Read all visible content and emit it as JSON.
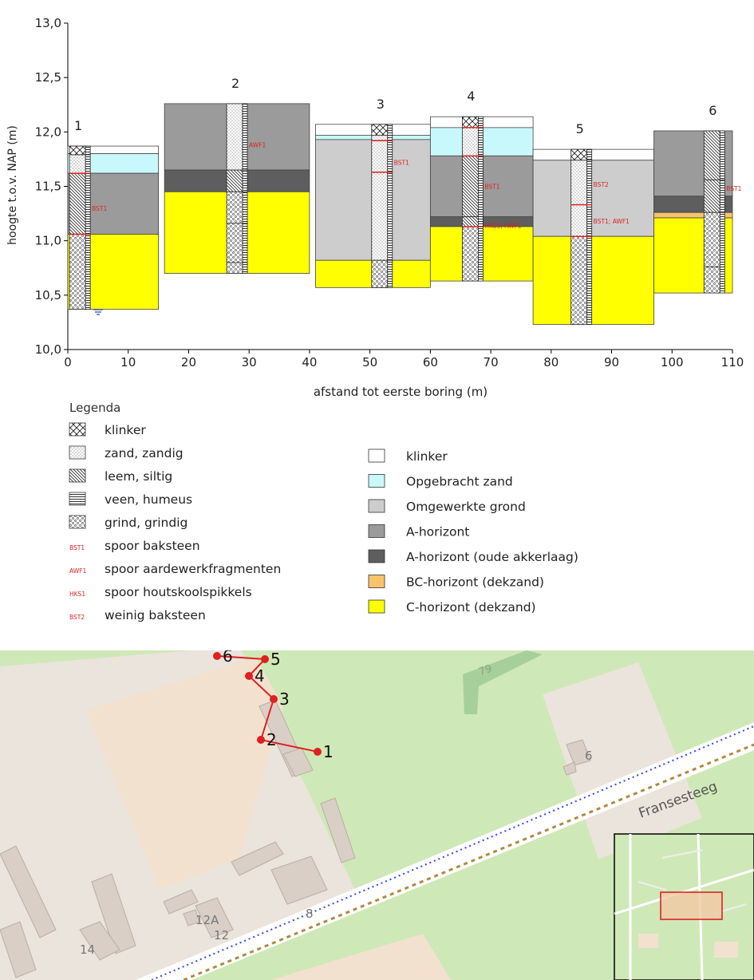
{
  "chart_data": {
    "type": "boring-profile",
    "ylabel": "hoogte t.o.v. NAP (m)",
    "xlabel": "afstand tot eerste boring (m)",
    "xlim": [
      0,
      110
    ],
    "ylim": [
      10.0,
      13.0
    ],
    "x_ticks": [
      "0",
      "10",
      "20",
      "30",
      "40",
      "50",
      "60",
      "70",
      "80",
      "90",
      "100",
      "110"
    ],
    "y_ticks": [
      "10,0",
      "10,5",
      "11,0",
      "11,5",
      "12,0",
      "12,5",
      "13,0"
    ],
    "colors": {
      "klinker": "#ffffff",
      "opgebracht": "#c8f8fc",
      "omgewerkt": "#cdcdcd",
      "a": "#9b9b9b",
      "aOud": "#5e5e5e",
      "bc": "#f7c46c",
      "c": "#ffff00",
      "marker": "#dd2222"
    },
    "borings": [
      {
        "label": "1",
        "x": 2,
        "x0": 0,
        "x1": 15,
        "top": 11.87,
        "bottom": 10.37,
        "layers": [
          {
            "horizon": "klinker",
            "top": 11.87,
            "bottom": 11.8
          },
          {
            "horizon": "opgebracht",
            "top": 11.8,
            "bottom": 11.62
          },
          {
            "horizon": "a",
            "top": 11.62,
            "bottom": 11.06
          },
          {
            "horizon": "c",
            "top": 11.06,
            "bottom": 10.37
          }
        ],
        "core": [
          {
            "lith": "klinker",
            "top": 11.87,
            "bottom": 11.79
          },
          {
            "lith": "zand",
            "top": 11.79,
            "bottom": 11.62
          },
          {
            "lith": "leem",
            "top": 11.62,
            "bottom": 11.06
          },
          {
            "lith": "grind",
            "top": 11.06,
            "bottom": 10.37
          }
        ],
        "markers": [
          {
            "code": "BST1",
            "y": 11.3
          }
        ],
        "lines": [
          11.62,
          11.06
        ]
      },
      {
        "label": "2",
        "x": 28,
        "x0": 16,
        "x1": 40,
        "top": 12.26,
        "bottom": 10.7,
        "layers": [
          {
            "horizon": "a",
            "top": 12.26,
            "bottom": 11.65
          },
          {
            "horizon": "aOud",
            "top": 11.65,
            "bottom": 11.45
          },
          {
            "horizon": "c",
            "top": 11.45,
            "bottom": 10.7
          }
        ],
        "core": [
          {
            "lith": "zand",
            "top": 12.26,
            "bottom": 11.65
          },
          {
            "lith": "leem",
            "top": 11.65,
            "bottom": 11.45
          },
          {
            "lith": "grind",
            "top": 11.45,
            "bottom": 11.16
          },
          {
            "lith": "grind",
            "top": 11.16,
            "bottom": 10.8
          },
          {
            "lith": "grind",
            "top": 10.8,
            "bottom": 10.7
          }
        ],
        "markers": [
          {
            "code": "AWF1",
            "y": 11.88
          }
        ],
        "lines": []
      },
      {
        "label": "3",
        "x": 52,
        "x0": 41,
        "x1": 60,
        "top": 12.07,
        "bottom": 10.57,
        "layers": [
          {
            "horizon": "klinker",
            "top": 12.07,
            "bottom": 11.97
          },
          {
            "horizon": "opgebracht",
            "top": 11.97,
            "bottom": 11.93
          },
          {
            "horizon": "omgewerkt",
            "top": 11.93,
            "bottom": 10.82
          },
          {
            "horizon": "c",
            "top": 10.82,
            "bottom": 10.57
          }
        ],
        "core": [
          {
            "lith": "klinker",
            "top": 12.07,
            "bottom": 11.97
          },
          {
            "lith": "zand",
            "top": 11.97,
            "bottom": 10.82
          },
          {
            "lith": "grind",
            "top": 10.82,
            "bottom": 10.57
          }
        ],
        "markers": [
          {
            "code": "BST1",
            "y": 11.72
          }
        ],
        "lines": [
          11.92,
          11.63
        ]
      },
      {
        "label": "4",
        "x": 67,
        "x0": 60,
        "x1": 77,
        "top": 12.14,
        "bottom": 10.63,
        "layers": [
          {
            "horizon": "klinker",
            "top": 12.14,
            "bottom": 12.04
          },
          {
            "horizon": "opgebracht",
            "top": 12.04,
            "bottom": 11.78
          },
          {
            "horizon": "a",
            "top": 11.78,
            "bottom": 11.22
          },
          {
            "horizon": "aOud",
            "top": 11.22,
            "bottom": 11.13
          },
          {
            "horizon": "c",
            "top": 11.13,
            "bottom": 10.63
          }
        ],
        "core": [
          {
            "lith": "klinker",
            "top": 12.14,
            "bottom": 12.04
          },
          {
            "lith": "zand",
            "top": 12.04,
            "bottom": 11.78
          },
          {
            "lith": "leem",
            "top": 11.78,
            "bottom": 11.22
          },
          {
            "lith": "leem",
            "top": 11.22,
            "bottom": 11.13
          },
          {
            "lith": "grind",
            "top": 11.13,
            "bottom": 10.63
          }
        ],
        "markers": [
          {
            "code": "BST1",
            "y": 11.5
          },
          {
            "code": "HKS1; AWF1",
            "y": 11.14
          }
        ],
        "lines": [
          12.04,
          11.78,
          11.13
        ]
      },
      {
        "label": "5",
        "x": 85,
        "x0": 77,
        "x1": 97,
        "top": 11.84,
        "bottom": 10.23,
        "layers": [
          {
            "horizon": "klinker",
            "top": 11.84,
            "bottom": 11.74
          },
          {
            "horizon": "omgewerkt",
            "top": 11.74,
            "bottom": 11.04
          },
          {
            "horizon": "c",
            "top": 11.04,
            "bottom": 10.23
          }
        ],
        "core": [
          {
            "lith": "klinker",
            "top": 11.84,
            "bottom": 11.74
          },
          {
            "lith": "zand",
            "top": 11.74,
            "bottom": 11.04
          },
          {
            "lith": "grind",
            "top": 11.04,
            "bottom": 10.23
          }
        ],
        "markers": [
          {
            "code": "BST2",
            "y": 11.52
          },
          {
            "code": "BST1; AWF1",
            "y": 11.18
          }
        ],
        "lines": [
          11.33,
          11.04
        ]
      },
      {
        "label": "6",
        "x": 107,
        "x0": 97,
        "x1": 110,
        "top": 12.01,
        "bottom": 10.52,
        "layers": [
          {
            "horizon": "a",
            "top": 12.01,
            "bottom": 11.41
          },
          {
            "horizon": "aOud",
            "top": 11.41,
            "bottom": 11.26
          },
          {
            "horizon": "bc",
            "top": 11.26,
            "bottom": 11.21
          },
          {
            "horizon": "c",
            "top": 11.21,
            "bottom": 10.52
          }
        ],
        "core": [
          {
            "lith": "leem",
            "top": 12.01,
            "bottom": 11.56
          },
          {
            "lith": "leem",
            "top": 11.56,
            "bottom": 11.26
          },
          {
            "lith": "grind",
            "top": 11.26,
            "bottom": 10.76
          },
          {
            "lith": "grind",
            "top": 10.76,
            "bottom": 10.52
          }
        ],
        "markers": [
          {
            "code": "BST1",
            "y": 11.48
          }
        ],
        "lines": []
      }
    ]
  },
  "legend": {
    "title": "Legenda",
    "lithology": [
      {
        "pattern": "klinker",
        "label": "klinker"
      },
      {
        "pattern": "zand",
        "label": "zand, zandig"
      },
      {
        "pattern": "leem",
        "label": "leem, siltig"
      },
      {
        "pattern": "veen",
        "label": "veen, humeus"
      },
      {
        "pattern": "grind",
        "label": "grind, grindig"
      },
      {
        "pattern": "marker",
        "code": "BST1",
        "label": "spoor baksteen"
      },
      {
        "pattern": "marker",
        "code": "AWF1",
        "label": "spoor aardewerkfragmenten"
      },
      {
        "pattern": "marker",
        "code": "HKS1",
        "label": "spoor houtskoolspikkels"
      },
      {
        "pattern": "marker",
        "code": "BST2",
        "label": "weinig baksteen"
      }
    ],
    "horizons": [
      {
        "color": "#ffffff",
        "label": "klinker"
      },
      {
        "color": "#c8f8fc",
        "label": "Opgebracht zand"
      },
      {
        "color": "#cdcdcd",
        "label": "Omgewerkte grond"
      },
      {
        "color": "#9b9b9b",
        "label": "A-horizont"
      },
      {
        "color": "#5e5e5e",
        "label": "A-horizont (oude akkerlaag)"
      },
      {
        "color": "#f7c46c",
        "label": "BC-horizont (dekzand)"
      },
      {
        "color": "#ffff00",
        "label": "C-horizont (dekzand)"
      }
    ]
  },
  "map": {
    "street_name": "Fransesteeg",
    "house_numbers": [
      "8",
      "6",
      "12A",
      "12",
      "14",
      "79"
    ],
    "boring_labels": [
      "1",
      "2",
      "3",
      "4",
      "5",
      "6"
    ],
    "colors": {
      "grass": "#cfe8b7",
      "built": "#f3e1d0",
      "road": "#ffffff",
      "building": "#d9cfc6",
      "route": "#e02020"
    }
  }
}
